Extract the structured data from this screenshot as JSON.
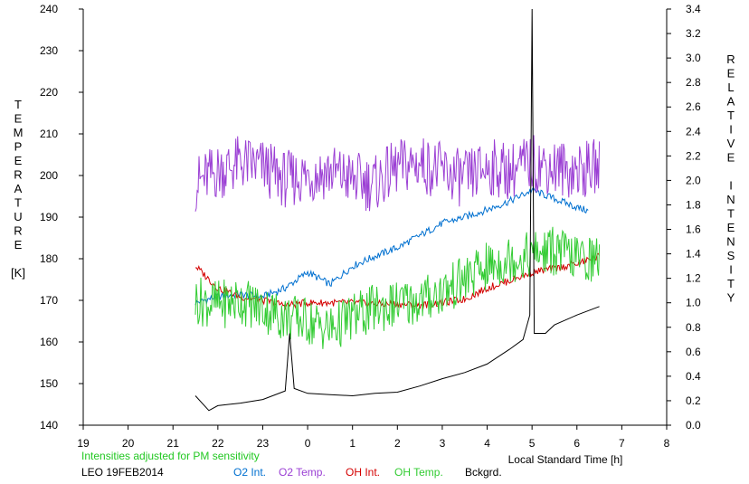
{
  "chart_data": {
    "type": "line",
    "title": "",
    "xlabel": "Local Standard Time [h]",
    "x_tick_labels": [
      "19",
      "20",
      "21",
      "22",
      "23",
      "0",
      "1",
      "2",
      "3",
      "4",
      "5",
      "6",
      "7",
      "8"
    ],
    "x_range_hours": [
      19,
      32
    ],
    "ylabel_left": [
      "T",
      "E",
      "M",
      "P",
      "E",
      "R",
      "A",
      "T",
      "U",
      "R",
      "E",
      "",
      "[K]"
    ],
    "ylim_left": [
      140,
      240
    ],
    "y_tick_labels_left": [
      "140",
      "150",
      "160",
      "170",
      "180",
      "190",
      "200",
      "210",
      "220",
      "230",
      "240"
    ],
    "ylabel_right": [
      "R",
      "E",
      "L",
      "A",
      "T",
      "I",
      "V",
      "E",
      "",
      "I",
      "N",
      "T",
      "E",
      "N",
      "S",
      "I",
      "T",
      "Y"
    ],
    "ylim_right": [
      0.0,
      3.4
    ],
    "y_tick_labels_right": [
      "0.0",
      "0.2",
      "0.4",
      "0.6",
      "0.8",
      "1.0",
      "1.2",
      "1.4",
      "1.6",
      "1.8",
      "2.0",
      "2.2",
      "2.4",
      "2.6",
      "2.8",
      "3.0",
      "3.2",
      "3.4"
    ],
    "note": "Intensities adjusted for PM sensitivity",
    "station_date": "LEO 19FEB2014",
    "grid": false,
    "series": [
      {
        "name": "O2 Int.",
        "axis": "right",
        "color": "#0070d0",
        "x": [
          21.5,
          22.0,
          22.5,
          23.0,
          23.5,
          24.0,
          24.5,
          25.0,
          25.5,
          26.0,
          26.5,
          27.0,
          27.5,
          28.0,
          28.5,
          29.0,
          29.5,
          30.0,
          30.25
        ],
        "y": [
          1.0,
          1.05,
          1.07,
          1.05,
          1.12,
          1.25,
          1.15,
          1.3,
          1.38,
          1.45,
          1.55,
          1.65,
          1.7,
          1.76,
          1.83,
          1.92,
          1.85,
          1.78,
          1.75
        ]
      },
      {
        "name": "O2 Temp.",
        "axis": "left",
        "color": "#9b3fd4",
        "x": [
          21.5,
          22.0,
          22.5,
          23.0,
          23.5,
          24.0,
          24.5,
          25.0,
          25.5,
          26.0,
          26.5,
          27.0,
          27.5,
          28.0,
          28.5,
          29.0,
          29.5,
          30.0,
          30.5
        ],
        "y": [
          198,
          201,
          203,
          202,
          199,
          200,
          201,
          199,
          198,
          202,
          203,
          201,
          199,
          202,
          201,
          203,
          202,
          201,
          202
        ]
      },
      {
        "name": "OH Int.",
        "axis": "right",
        "color": "#d40000",
        "x": [
          21.5,
          22.0,
          22.5,
          23.0,
          23.5,
          24.0,
          24.5,
          25.0,
          25.5,
          26.0,
          26.5,
          27.0,
          27.5,
          28.0,
          28.5,
          29.0,
          29.5,
          30.0,
          30.5
        ],
        "y": [
          1.3,
          1.12,
          1.05,
          1.02,
          0.98,
          1.0,
          1.0,
          1.0,
          0.99,
          0.99,
          0.98,
          1.0,
          1.03,
          1.12,
          1.18,
          1.25,
          1.28,
          1.32,
          1.38
        ]
      },
      {
        "name": "OH Temp.",
        "axis": "left",
        "color": "#33cc33",
        "x": [
          21.5,
          22.0,
          22.5,
          23.0,
          23.5,
          24.0,
          24.5,
          25.0,
          25.5,
          26.0,
          26.5,
          27.0,
          27.5,
          28.0,
          28.5,
          29.0,
          29.5,
          30.0,
          30.5
        ],
        "y": [
          170,
          169,
          170,
          168,
          166,
          165,
          163,
          166,
          168,
          169,
          170,
          172,
          175,
          178,
          180,
          181,
          182,
          180,
          180
        ]
      },
      {
        "name": "Bckgrd.",
        "axis": "right",
        "color": "#000000",
        "x": [
          21.5,
          21.8,
          22.0,
          22.5,
          23.0,
          23.5,
          23.6,
          23.7,
          24.0,
          24.5,
          25.0,
          25.5,
          26.0,
          26.5,
          27.0,
          27.5,
          28.0,
          28.5,
          28.8,
          28.95,
          29.0,
          29.05,
          29.3,
          29.5,
          30.0,
          30.5
        ],
        "y": [
          0.24,
          0.12,
          0.16,
          0.18,
          0.21,
          0.28,
          0.75,
          0.3,
          0.26,
          0.25,
          0.24,
          0.26,
          0.27,
          0.32,
          0.38,
          0.43,
          0.5,
          0.62,
          0.7,
          0.9,
          3.4,
          0.75,
          0.75,
          0.82,
          0.9,
          0.97
        ]
      }
    ]
  }
}
